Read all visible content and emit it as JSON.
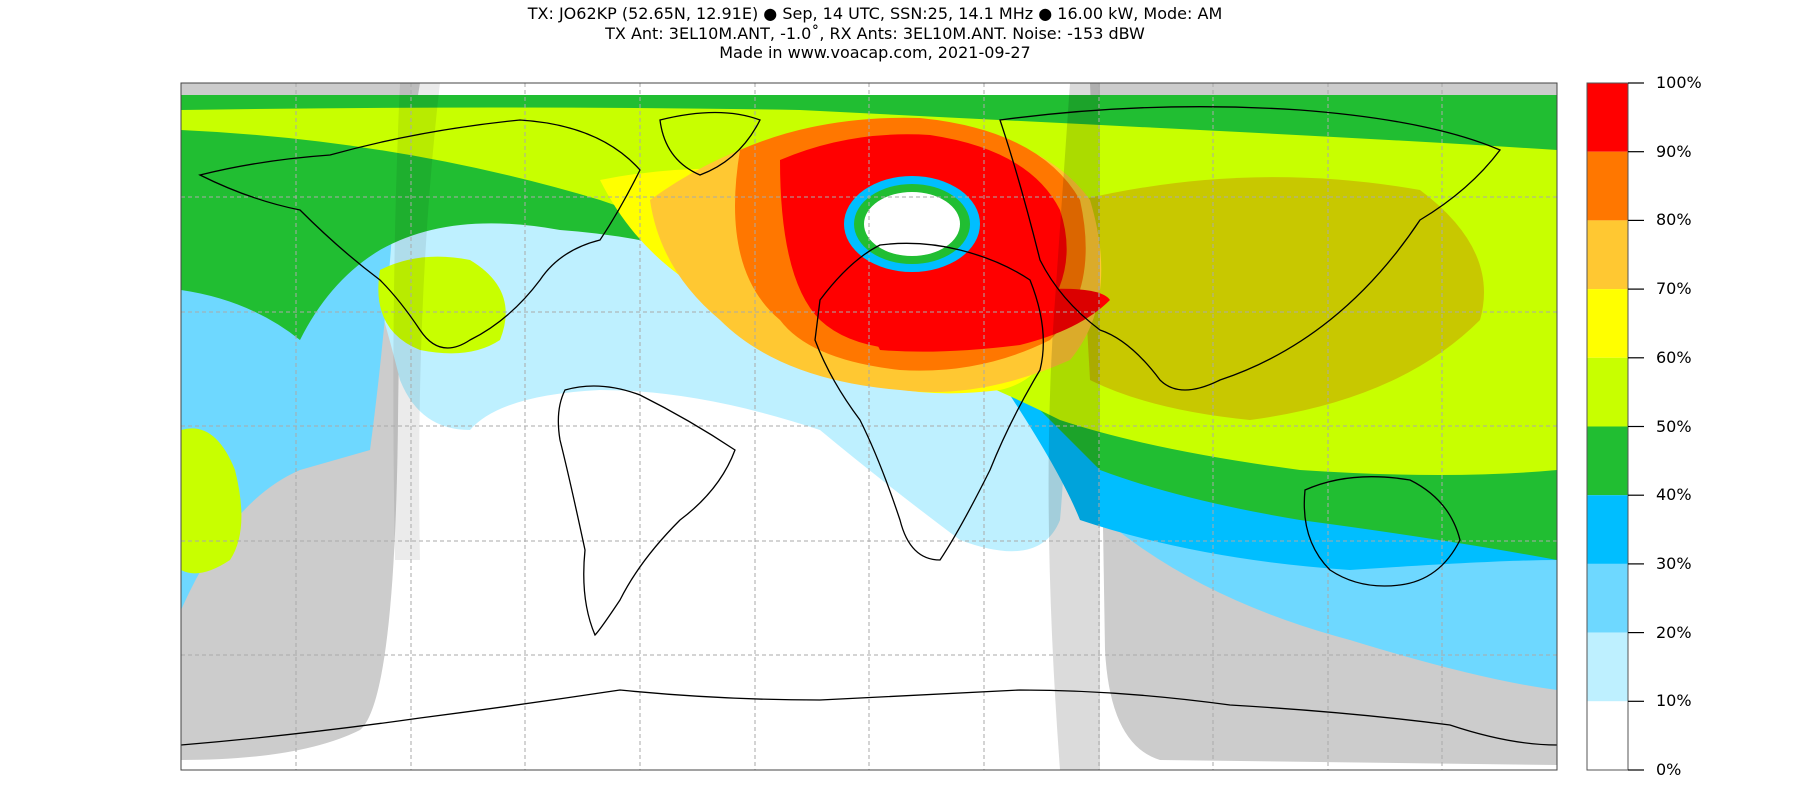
{
  "header": {
    "line1": "TX: JO62KP (52.65N, 12.91E) ● Sep, 14 UTC, SSN:25, 14.1 MHz ● 16.00 kW, Mode: AM",
    "line2": "TX Ant: 3EL10M.ANT, -1.0˚, RX Ants: 3EL10M.ANT. Noise: -153 dBW",
    "line3": "Made in www.voacap.com, 2021-09-27"
  },
  "colorbar": {
    "labels": [
      "100%",
      "90%",
      "80%",
      "70%",
      "60%",
      "50%",
      "40%",
      "30%",
      "20%",
      "10%",
      "0%"
    ],
    "colors": [
      "#ff0000",
      "#ff7700",
      "#ffc832",
      "#ffff00",
      "#c8ff00",
      "#21be32",
      "#00beff",
      "#6ed8ff",
      "#bef0ff",
      "#ffffff"
    ]
  },
  "map": {
    "subject": "Reliability coverage map (world, equirectangular)",
    "colors": {
      "night_shade": "#cccccc",
      "coast": "#000000",
      "border": "#8a8a8a",
      "grid": "#aaaaaa",
      "twilight_overlay": "#000000"
    }
  }
}
